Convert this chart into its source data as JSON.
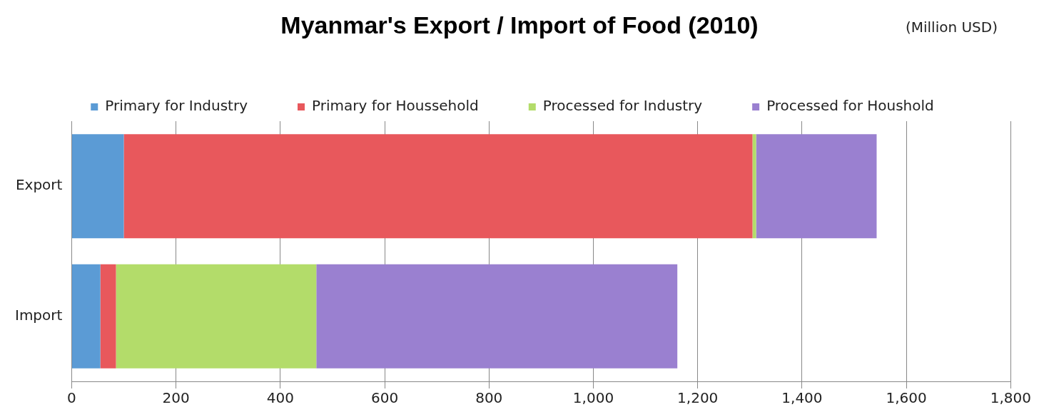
{
  "chart_data": {
    "type": "bar",
    "orientation": "horizontal",
    "stacked": true,
    "title": "Myanmar's Export / Import of Food (2010)",
    "subtitle": "(Million USD)",
    "categories": [
      "Export",
      "Import"
    ],
    "series": [
      {
        "name": "Primary for Industry",
        "color": "#5b9bd5",
        "values": [
          100,
          55
        ]
      },
      {
        "name": "Primary for Houssehold",
        "color": "#e8585c",
        "values": [
          1205,
          30
        ]
      },
      {
        "name": "Processed for Industry",
        "color": "#b3dc6a",
        "values": [
          7,
          384
        ]
      },
      {
        "name": "Processed for Houshold",
        "color": "#9a80d0",
        "values": [
          231,
          692
        ]
      }
    ],
    "xlim": [
      0,
      1800
    ],
    "xticks": [
      {
        "value": 0,
        "label": "0"
      },
      {
        "value": 200,
        "label": "200"
      },
      {
        "value": 400,
        "label": "400"
      },
      {
        "value": 600,
        "label": "600"
      },
      {
        "value": 800,
        "label": "800"
      },
      {
        "value": 1000,
        "label": "1,000"
      },
      {
        "value": 1200,
        "label": "1,200"
      },
      {
        "value": 1400,
        "label": "1,400"
      },
      {
        "value": 1600,
        "label": "1,600"
      },
      {
        "value": 1800,
        "label": "1,800"
      }
    ],
    "grid": "x",
    "legend": "top"
  }
}
